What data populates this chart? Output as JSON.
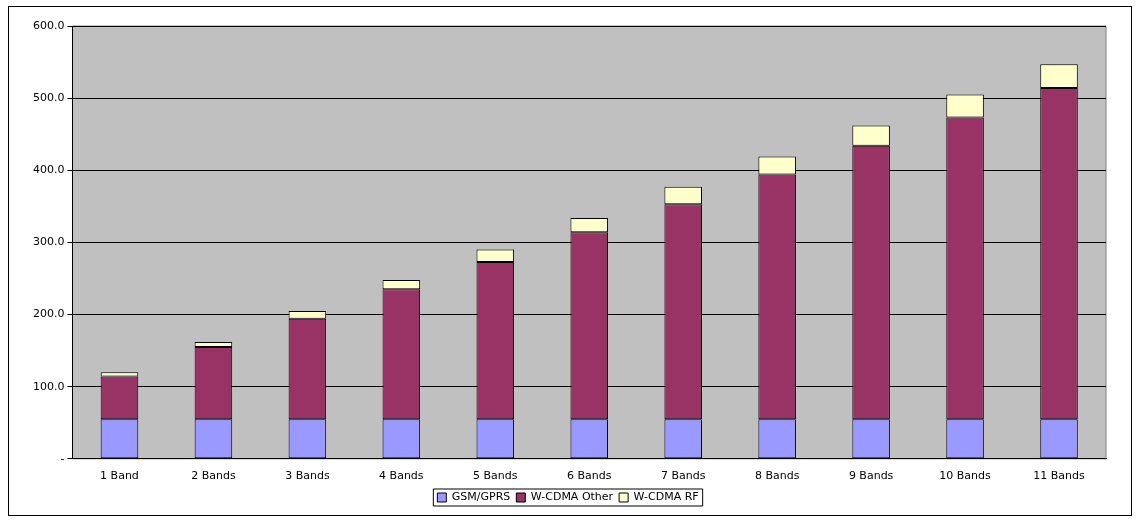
{
  "chart_data": {
    "type": "bar",
    "stacked": true,
    "categories": [
      "1 Band",
      "2 Bands",
      "3 Bands",
      "4 Bands",
      "5 Bands",
      "6 Bands",
      "7 Bands",
      "8 Bands",
      "9 Bands",
      "10 Bands",
      "11 Bands"
    ],
    "series": [
      {
        "name": "GSM/GPRS",
        "color": "#9999ff",
        "values": [
          55,
          55,
          55,
          55,
          55,
          55,
          55,
          55,
          55,
          55,
          55
        ]
      },
      {
        "name": "W-CDMA Other",
        "color": "#993366",
        "values": [
          59,
          100,
          139,
          180,
          218,
          259,
          298,
          339,
          379,
          418,
          459
        ]
      },
      {
        "name": "W-CDMA RF",
        "color": "#ffffcc",
        "values": [
          6,
          7,
          11,
          13,
          17,
          20,
          24,
          25,
          28,
          32,
          33
        ]
      }
    ],
    "ylim": [
      0,
      600
    ],
    "yticks": [
      {
        "value": 0,
        "label": "-"
      },
      {
        "value": 100,
        "label": "100.0"
      },
      {
        "value": 200,
        "label": "200.0"
      },
      {
        "value": 300,
        "label": "300.0"
      },
      {
        "value": 400,
        "label": "400.0"
      },
      {
        "value": 500,
        "label": "500.0"
      },
      {
        "value": 600,
        "label": "600.0"
      }
    ],
    "grid": "y",
    "legend": "bottom"
  }
}
